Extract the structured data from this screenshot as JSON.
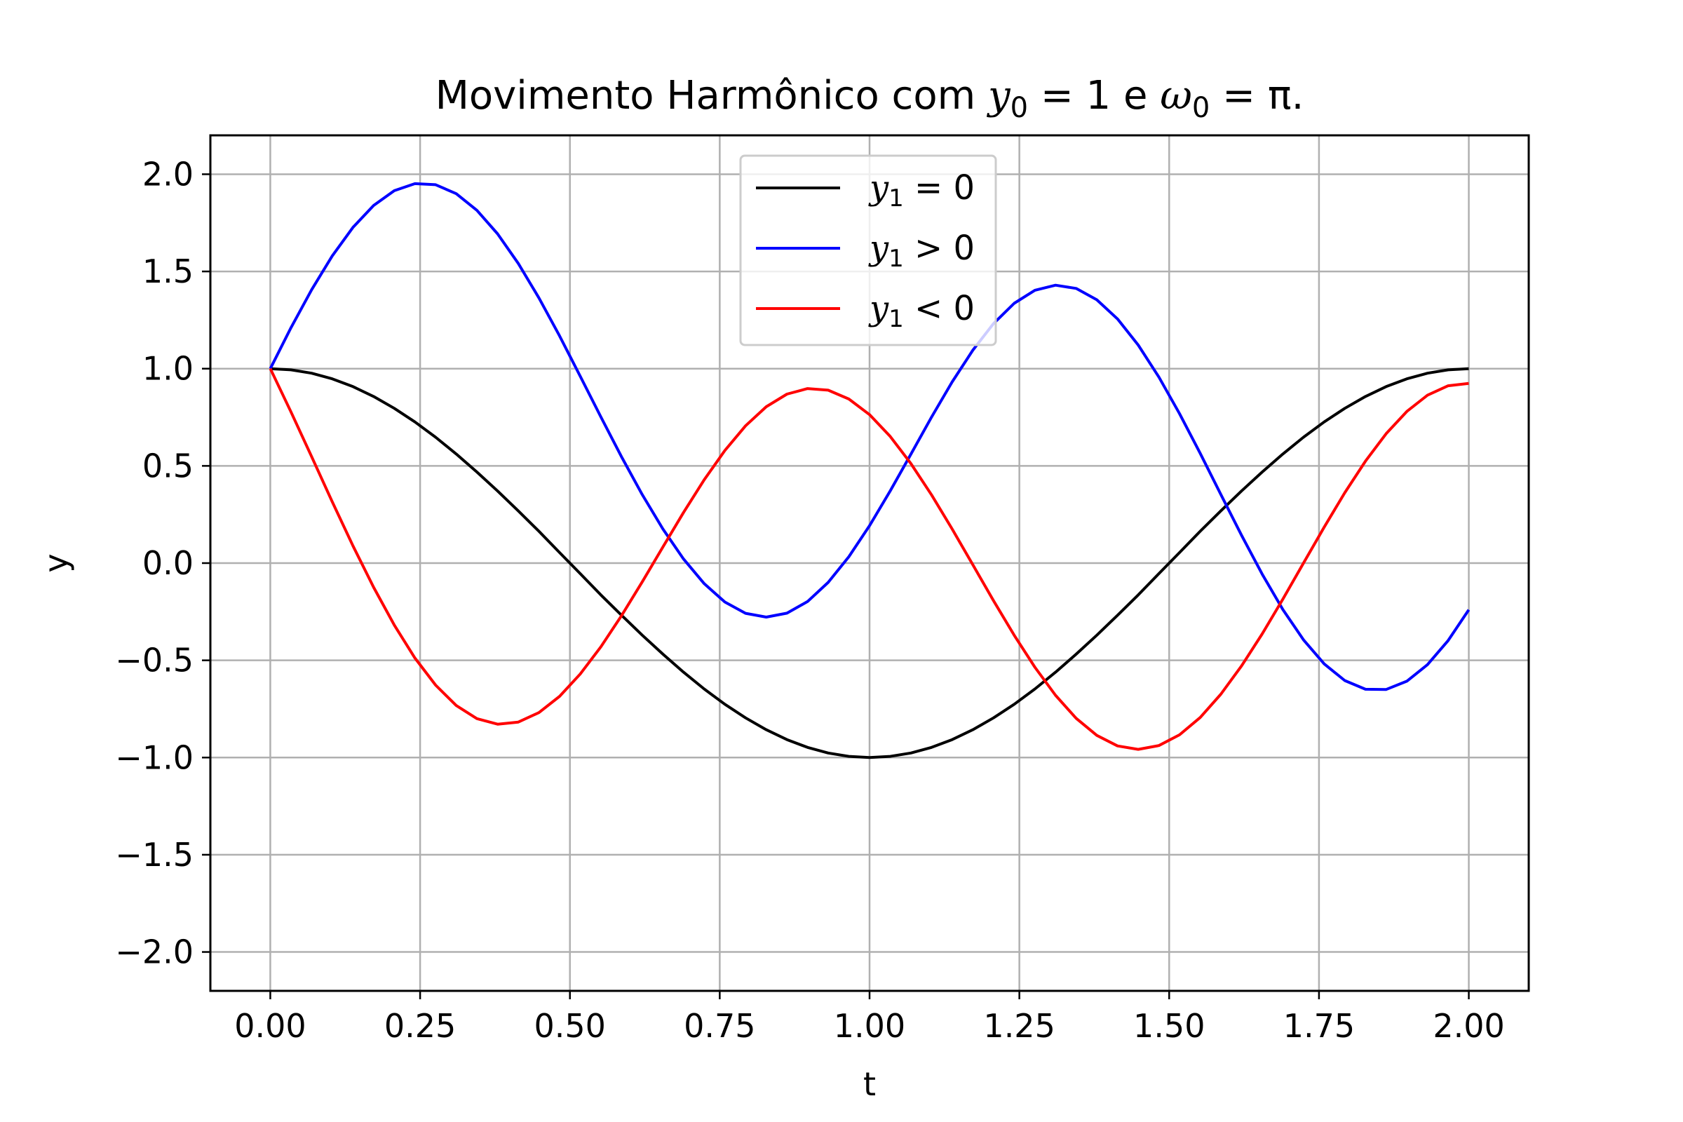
{
  "chart_data": {
    "type": "line",
    "title": {
      "prefix": "Movimento Harmônico com ",
      "y0_sym": "y",
      "y0_sub": "0",
      "y0_val": " = 1",
      "join": " e ",
      "w0_sym": "ω",
      "w0_sub": "0",
      "w0_val": " = π",
      "suffix": "."
    },
    "xlabel": "t",
    "ylabel": "y",
    "xlim": [
      -0.1,
      2.1
    ],
    "ylim": [
      -2.2,
      2.2
    ],
    "xticks": [
      {
        "value": 0.0,
        "label": "0.00"
      },
      {
        "value": 0.25,
        "label": "0.25"
      },
      {
        "value": 0.5,
        "label": "0.50"
      },
      {
        "value": 0.75,
        "label": "0.75"
      },
      {
        "value": 1.0,
        "label": "1.00"
      },
      {
        "value": 1.25,
        "label": "1.25"
      },
      {
        "value": 1.5,
        "label": "1.50"
      },
      {
        "value": 1.75,
        "label": "1.75"
      },
      {
        "value": 2.0,
        "label": "2.00"
      }
    ],
    "yticks": [
      {
        "value": 2.0,
        "label": "2.0"
      },
      {
        "value": 1.5,
        "label": "1.5"
      },
      {
        "value": 1.0,
        "label": "1.0"
      },
      {
        "value": 0.5,
        "label": "0.5"
      },
      {
        "value": 0.0,
        "label": "0.0"
      },
      {
        "value": -0.5,
        "label": "−0.5"
      },
      {
        "value": -1.0,
        "label": "−1.0"
      },
      {
        "value": -1.5,
        "label": "−1.5"
      },
      {
        "value": -2.0,
        "label": "−2.0"
      }
    ],
    "grid": true,
    "legend_position": "upper-center",
    "x": [
      0.0,
      0.0345,
      0.069,
      0.1034,
      0.1379,
      0.1724,
      0.2069,
      0.2414,
      0.2759,
      0.3103,
      0.3448,
      0.3793,
      0.4138,
      0.4483,
      0.4828,
      0.5172,
      0.5517,
      0.5862,
      0.6207,
      0.6552,
      0.6897,
      0.7241,
      0.7586,
      0.7931,
      0.8276,
      0.8621,
      0.8966,
      0.931,
      0.9655,
      1.0,
      1.0345,
      1.069,
      1.1034,
      1.1379,
      1.1724,
      1.2069,
      1.2414,
      1.2759,
      1.3103,
      1.3448,
      1.3793,
      1.4138,
      1.4483,
      1.4828,
      1.5172,
      1.5517,
      1.5862,
      1.6207,
      1.6552,
      1.6897,
      1.7241,
      1.7586,
      1.7931,
      1.8276,
      1.8621,
      1.8966,
      1.931,
      1.9655,
      2.0
    ],
    "series": [
      {
        "legend": {
          "sym": "y",
          "sub": "1",
          "rel": " = 0"
        },
        "color": "#000000",
        "values": [
          1.0,
          0.9941,
          0.9766,
          0.9477,
          0.9077,
          0.8569,
          0.7961,
          0.726,
          0.6473,
          0.5612,
          0.4685,
          0.3706,
          0.2685,
          0.1636,
          0.0541,
          -0.0541,
          -0.1636,
          -0.2685,
          -0.3706,
          -0.4685,
          -0.5612,
          -0.6473,
          -0.726,
          -0.7961,
          -0.8569,
          -0.9077,
          -0.9477,
          -0.9766,
          -0.9941,
          -1.0,
          -0.9941,
          -0.9766,
          -0.9477,
          -0.9077,
          -0.8569,
          -0.7961,
          -0.726,
          -0.6473,
          -0.5612,
          -0.4685,
          -0.3706,
          -0.2685,
          -0.1636,
          -0.0541,
          0.0541,
          0.1636,
          0.2685,
          0.3706,
          0.4685,
          0.5612,
          0.6473,
          0.726,
          0.7961,
          0.8569,
          0.9077,
          0.9477,
          0.9766,
          0.9941,
          1.0
        ]
      },
      {
        "legend": {
          "sym": "y",
          "sub": "1",
          "rel": " > 0"
        },
        "color": "#0000ff",
        "values": [
          1.0,
          1.2102,
          1.4059,
          1.58,
          1.7263,
          1.8394,
          1.9153,
          1.9514,
          1.9462,
          1.8999,
          1.8145,
          1.6934,
          1.5412,
          1.364,
          1.168,
          0.9613,
          0.7516,
          0.5462,
          0.3519,
          0.175,
          0.0208,
          -0.1058,
          -0.2001,
          -0.2583,
          -0.2778,
          -0.2574,
          -0.1977,
          -0.0993,
          0.0328,
          0.1925,
          0.3713,
          0.5606,
          0.7508,
          0.9319,
          1.095,
          1.232,
          1.3364,
          1.4032,
          1.4291,
          1.4126,
          1.3541,
          1.2558,
          1.1216,
          0.957,
          0.7688,
          0.5648,
          0.3536,
          0.1437,
          -0.0566,
          -0.2386,
          -0.3947,
          -0.5183,
          -0.6042,
          -0.6488,
          -0.6499,
          -0.6072,
          -0.5222,
          -0.3982,
          -0.2401
        ]
      },
      {
        "legend": {
          "sym": "y",
          "sub": "1",
          "rel": " < 0"
        },
        "color": "#ff0000",
        "values": [
          1.0,
          0.778,
          0.5474,
          0.3153,
          0.0891,
          -0.1244,
          -0.3189,
          -0.4883,
          -0.6276,
          -0.7324,
          -0.8,
          -0.8285,
          -0.8177,
          -0.769,
          -0.6853,
          -0.5707,
          -0.4301,
          -0.2698,
          -0.0962,
          0.0834,
          0.2609,
          0.4285,
          0.5791,
          0.7061,
          0.8042,
          0.869,
          0.8978,
          0.8893,
          0.8439,
          0.7635,
          0.6513,
          0.5119,
          0.351,
          0.1751,
          -0.0087,
          -0.1932,
          -0.3712,
          -0.5356,
          -0.6799,
          -0.7983,
          -0.8862,
          -0.9401,
          -0.9578,
          -0.9386,
          -0.8833,
          -0.7941,
          -0.6745,
          -0.5292,
          -0.3641,
          -0.1854,
          -0.0001,
          0.1848,
          0.362,
          0.5244,
          0.6656,
          0.7802,
          0.8635,
          0.9122,
          0.9241
        ]
      }
    ]
  }
}
